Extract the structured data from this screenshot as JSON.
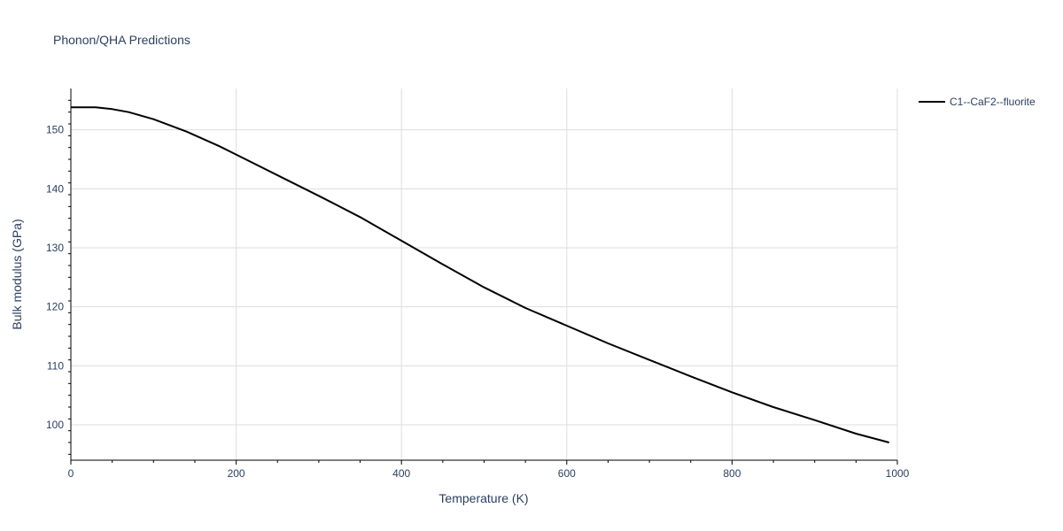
{
  "chart_data": {
    "type": "line",
    "title": "Phonon/QHA Predictions",
    "xlabel": "Temperature (K)",
    "ylabel": "Bulk modulus (GPa)",
    "xlim": [
      0,
      1000
    ],
    "ylim": [
      94,
      157
    ],
    "x_ticks": [
      0,
      200,
      400,
      600,
      800,
      1000
    ],
    "y_ticks": [
      100,
      110,
      120,
      130,
      140,
      150
    ],
    "grid": true,
    "legend_position": "top-right",
    "series": [
      {
        "name": "C1--CaF2--fluorite",
        "color": "#000000",
        "x": [
          0,
          10,
          30,
          50,
          70,
          100,
          140,
          180,
          220,
          260,
          300,
          350,
          400,
          450,
          500,
          550,
          600,
          650,
          700,
          750,
          800,
          850,
          900,
          950,
          990
        ],
        "y": [
          153.8,
          153.8,
          153.8,
          153.5,
          153.0,
          151.8,
          149.7,
          147.2,
          144.4,
          141.6,
          138.8,
          135.2,
          131.2,
          127.2,
          123.3,
          119.8,
          116.8,
          113.8,
          111.0,
          108.2,
          105.5,
          103.0,
          100.8,
          98.5,
          97.0
        ]
      }
    ]
  }
}
